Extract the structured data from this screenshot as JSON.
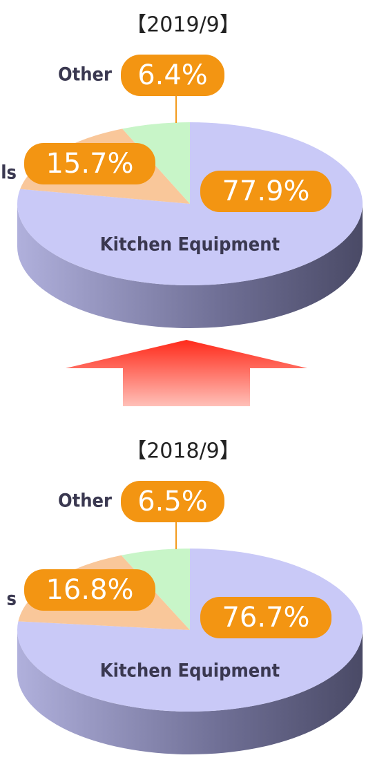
{
  "chart_data": [
    {
      "type": "pie",
      "title": "【2019/9】",
      "categories": [
        "Kitchen Equipment",
        "ls",
        "Other"
      ],
      "values": [
        77.9,
        15.7,
        6.4
      ],
      "value_labels": [
        "77.9%",
        "15.7%",
        "6.4%"
      ],
      "colors": [
        "#c9c9f7",
        "#f9c79a",
        "#c8f5c8"
      ]
    },
    {
      "type": "pie",
      "title": "【2018/9】",
      "categories": [
        "Kitchen Equipment",
        "s",
        "Other"
      ],
      "values": [
        76.7,
        16.8,
        6.5
      ],
      "value_labels": [
        "76.7%",
        "16.8%",
        "6.5%"
      ],
      "colors": [
        "#c9c9f7",
        "#f9c79a",
        "#c8f5c8"
      ]
    }
  ]
}
